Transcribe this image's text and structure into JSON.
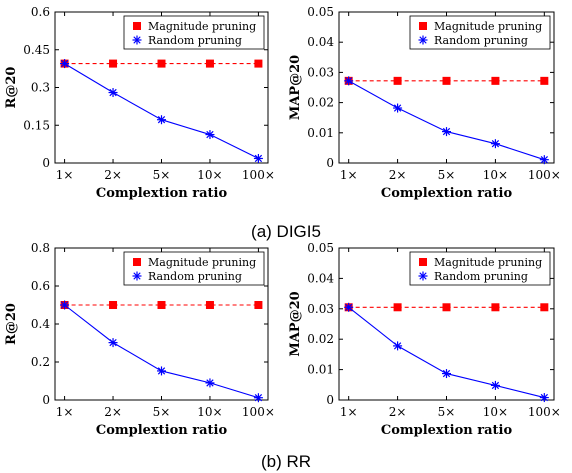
{
  "captions": [
    "(a) DIGI5",
    "(b) RR"
  ],
  "colors": {
    "magnitude": "#ff0000",
    "random": "#0000ff",
    "axis": "#000000"
  },
  "chart_data": [
    {
      "type": "line",
      "xlabel": "Complextion ratio",
      "ylabel": "R@20",
      "categories": [
        "1×",
        "2×",
        "5×",
        "10×",
        "100×"
      ],
      "ylim": [
        0,
        0.6
      ],
      "yticks": [
        "0",
        "0.15",
        "0.3",
        "0.45",
        "0.6"
      ],
      "legend": "top-right",
      "series": [
        {
          "name": "Magnitude pruning",
          "marker": "square",
          "line": "dashed",
          "values": [
            0.395,
            0.395,
            0.395,
            0.395,
            0.395
          ]
        },
        {
          "name": "Random pruning",
          "marker": "asterisk",
          "line": "solid",
          "values": [
            0.395,
            0.28,
            0.172,
            0.113,
            0.018
          ]
        }
      ]
    },
    {
      "type": "line",
      "xlabel": "Complextion ratio",
      "ylabel": "MAP@20",
      "categories": [
        "1×",
        "2×",
        "5×",
        "10×",
        "100×"
      ],
      "ylim": [
        0,
        0.05
      ],
      "yticks": [
        "0",
        "0.01",
        "0.02",
        "0.03",
        "0.04",
        "0.05"
      ],
      "legend": "top-right",
      "series": [
        {
          "name": "Magnitude pruning",
          "marker": "square",
          "line": "dashed",
          "values": [
            0.0272,
            0.0272,
            0.0272,
            0.0272,
            0.0272
          ]
        },
        {
          "name": "Random pruning",
          "marker": "asterisk",
          "line": "solid",
          "values": [
            0.0272,
            0.0182,
            0.0104,
            0.0064,
            0.0011
          ]
        }
      ]
    },
    {
      "type": "line",
      "xlabel": "Complextion ratio",
      "ylabel": "R@20",
      "categories": [
        "1×",
        "2×",
        "5×",
        "10×",
        "100×"
      ],
      "ylim": [
        0,
        0.8
      ],
      "yticks": [
        "0",
        "0.2",
        "0.4",
        "0.6",
        "0.8"
      ],
      "legend": "top-right",
      "series": [
        {
          "name": "Magnitude pruning",
          "marker": "square",
          "line": "dashed",
          "values": [
            0.5,
            0.5,
            0.5,
            0.5,
            0.5
          ]
        },
        {
          "name": "Random pruning",
          "marker": "asterisk",
          "line": "solid",
          "values": [
            0.5,
            0.302,
            0.153,
            0.09,
            0.012
          ]
        }
      ]
    },
    {
      "type": "line",
      "xlabel": "Complextion ratio",
      "ylabel": "MAP@20",
      "categories": [
        "1×",
        "2×",
        "5×",
        "10×",
        "100×"
      ],
      "ylim": [
        0,
        0.05
      ],
      "yticks": [
        "0",
        "0.01",
        "0.02",
        "0.03",
        "0.04",
        "0.05"
      ],
      "legend": "top-right",
      "series": [
        {
          "name": "Magnitude pruning",
          "marker": "square",
          "line": "dashed",
          "values": [
            0.0305,
            0.0305,
            0.0305,
            0.0305,
            0.0305
          ]
        },
        {
          "name": "Random pruning",
          "marker": "asterisk",
          "line": "solid",
          "values": [
            0.0305,
            0.0178,
            0.0087,
            0.0048,
            0.0008
          ]
        }
      ]
    }
  ]
}
